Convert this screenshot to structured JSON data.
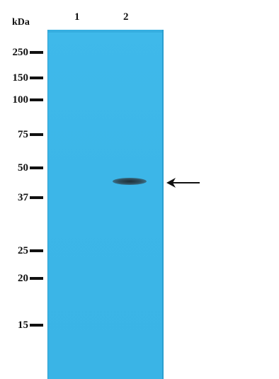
{
  "unit_label": "kDa",
  "lanes": [
    {
      "label": "1"
    },
    {
      "label": "2"
    }
  ],
  "markers": [
    {
      "label": "250"
    },
    {
      "label": "150"
    },
    {
      "label": "100"
    },
    {
      "label": "75"
    },
    {
      "label": "50"
    },
    {
      "label": "37"
    },
    {
      "label": "25"
    },
    {
      "label": "20"
    },
    {
      "label": "15"
    }
  ],
  "colors": {
    "membrane": "#3cb6e8",
    "band": "#2e4d5c",
    "text": "#111111"
  },
  "icons": {
    "arrow": "left-arrow-icon"
  }
}
